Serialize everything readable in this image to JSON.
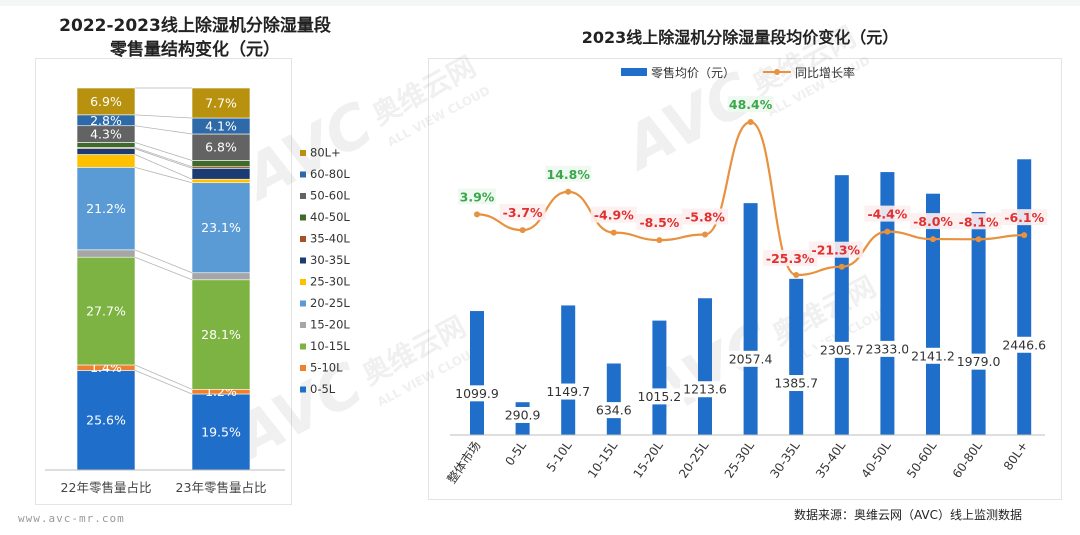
{
  "left_title_line1": "2022-2023线上除湿机分除湿量段",
  "left_title_line2": "零售量结构变化（元）",
  "right_title": "2023线上除湿机分除湿量段均价变化（元）",
  "source_note": "数据来源：奥维云网（AVC）线上监测数据",
  "website": "www.avc-mr.com",
  "watermark_logo": "AVC",
  "watermark_cn": "奥维云网",
  "watermark_en": "ALL VIEW CLOUD",
  "chart_data": [
    {
      "type": "stacked-bar-100",
      "categories": [
        "22年零售量占比",
        "23年零售量占比"
      ],
      "legend_position": "right",
      "series": [
        {
          "name": "0-5L",
          "color": "#1f6ec9",
          "values": [
            25.6,
            19.5
          ],
          "labels": [
            "25.6%",
            "19.5%"
          ]
        },
        {
          "name": "5-10L",
          "color": "#f0802c",
          "values": [
            1.4,
            1.2
          ],
          "labels": [
            "1.4%",
            "1.2%"
          ]
        },
        {
          "name": "10-15L",
          "color": "#7db342",
          "values": [
            27.7,
            28.1
          ],
          "labels": [
            "27.7%",
            "28.1%"
          ]
        },
        {
          "name": "15-20L",
          "color": "#a6a6a6",
          "values": [
            1.9,
            1.8
          ],
          "labels": [
            "",
            ""
          ]
        },
        {
          "name": "20-25L",
          "color": "#5b9bd5",
          "values": [
            21.2,
            23.1
          ],
          "labels": [
            "21.2%",
            "23.1%"
          ]
        },
        {
          "name": "25-30L",
          "color": "#ffc000",
          "values": [
            3.3,
            0.9
          ],
          "labels": [
            "",
            ""
          ]
        },
        {
          "name": "30-35L",
          "color": "#1c3b73",
          "values": [
            1.5,
            2.8
          ],
          "labels": [
            "",
            ""
          ]
        },
        {
          "name": "35-40L",
          "color": "#a5522a",
          "values": [
            0.3,
            0.4
          ],
          "labels": [
            "",
            ""
          ]
        },
        {
          "name": "40-50L",
          "color": "#3f6b2a",
          "values": [
            1.3,
            1.6
          ],
          "labels": [
            "",
            ""
          ]
        },
        {
          "name": "50-60L",
          "color": "#636363",
          "values": [
            4.3,
            6.8
          ],
          "labels": [
            "4.3%",
            "6.8%"
          ]
        },
        {
          "name": "60-80L",
          "color": "#2e6aa7",
          "values": [
            2.8,
            4.1
          ],
          "labels": [
            "2.8%",
            "4.1%"
          ]
        },
        {
          "name": "80L+",
          "color": "#b8920e",
          "values": [
            6.9,
            7.7
          ],
          "labels": [
            "6.9%",
            "7.7%"
          ]
        }
      ]
    },
    {
      "type": "bar+line",
      "categories": [
        "整体市场",
        "0-5L",
        "5-10L",
        "10-15L",
        "15-20L",
        "20-25L",
        "25-30L",
        "30-35L",
        "35-40L",
        "40-50L",
        "50-60L",
        "60-80L",
        "80L+"
      ],
      "legend_position": "top",
      "bar_series": {
        "name": "零售均价（元）",
        "color": "#1f6ec9",
        "values": [
          1099.9,
          290.9,
          1149.7,
          634.6,
          1015.2,
          1213.6,
          2057.4,
          1385.7,
          2305.7,
          2333.0,
          2141.2,
          1979.0,
          2446.6
        ],
        "labels": [
          "1099.9",
          "290.9",
          "1149.7",
          "634.6",
          "1015.2",
          "1213.6",
          "2057.4",
          "1385.7",
          "2305.7",
          "2333.0",
          "2141.2",
          "1979.0",
          "2446.6"
        ]
      },
      "line_series": {
        "name": "同比增长率",
        "color": "#e8913f",
        "values": [
          3.9,
          -3.7,
          14.8,
          -4.9,
          -8.5,
          -5.8,
          48.4,
          -25.3,
          -21.3,
          -4.4,
          -8.0,
          -8.1,
          -6.1
        ],
        "labels": [
          "3.9%",
          "-3.7%",
          "14.8%",
          "-4.9%",
          "-8.5%",
          "-5.8%",
          "48.4%",
          "-25.3%",
          "-21.3%",
          "-4.4%",
          "-8.0%",
          "-8.1%",
          "-6.1%"
        ],
        "positive_color": "#3aa84a",
        "negative_color": "#e03030"
      }
    }
  ]
}
